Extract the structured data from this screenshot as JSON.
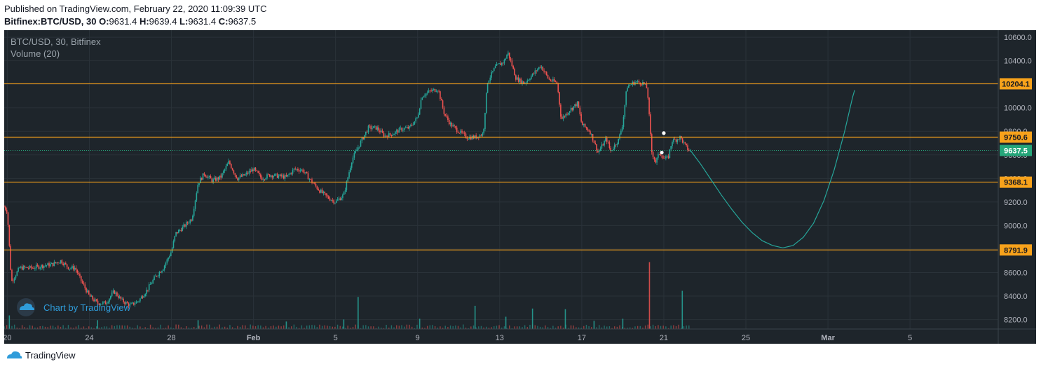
{
  "header": {
    "published": "Published on TradingView.com, February 22, 2020 11:09:39 UTC",
    "symbol": "Bitfinex:BTC/USD, 30",
    "o_label": "O:",
    "o": "9631.4",
    "h_label": "H:",
    "h": "9639.4",
    "l_label": "L:",
    "l": "9631.4",
    "c_label": "C:",
    "c": "9637.5"
  },
  "legend": {
    "series": "BTC/USD, 30, Bitfinex",
    "volume": "Volume (20)"
  },
  "watermark": "Chart by TradingView",
  "footer": {
    "brand": "TradingView"
  },
  "colors": {
    "background": "#1e252b",
    "grid": "#2a3239",
    "up": "#26a69a",
    "down": "#ef5350",
    "level_line": "#f7a21b",
    "projection": "#26a69a",
    "last_price": "#26a67a"
  },
  "chart_data": {
    "type": "candlestick",
    "title": "BTC/USD, 30, Bitfinex",
    "ylim": [
      8120,
      10660
    ],
    "y_ticks": [
      8200,
      8400,
      8600,
      8800,
      9000,
      9200,
      9400,
      9600,
      9800,
      10000,
      10200,
      10400,
      10600
    ],
    "y_tick_labels": [
      "8200.0",
      "8400.0",
      "8600.0",
      "8800.0",
      "9000.0",
      "9200.0",
      "9400.0",
      "9600.0",
      "9800.0",
      "10000.0",
      "10200.0",
      "10400.0",
      "10600.0"
    ],
    "x_ticks": [
      {
        "day": 20,
        "label": "20"
      },
      {
        "day": 24,
        "label": "24"
      },
      {
        "day": 28,
        "label": "28"
      },
      {
        "day": 32,
        "label": "Feb"
      },
      {
        "day": 36,
        "label": "5"
      },
      {
        "day": 40,
        "label": "9"
      },
      {
        "day": 44,
        "label": "13"
      },
      {
        "day": 48,
        "label": "17"
      },
      {
        "day": 52,
        "label": "21"
      },
      {
        "day": 56,
        "label": "25"
      },
      {
        "day": 60,
        "label": "Mar"
      },
      {
        "day": 64,
        "label": "5"
      }
    ],
    "xlim_days": [
      19.85,
      68.3
    ],
    "levels": [
      {
        "value": 10204.1,
        "label": "10204.1"
      },
      {
        "value": 9750.6,
        "label": "9750.6"
      },
      {
        "value": 9368.1,
        "label": "9368.1"
      },
      {
        "value": 8791.9,
        "label": "8791.9"
      }
    ],
    "last_price": {
      "value": 9637.5,
      "label": "9637.5"
    },
    "price_path": [
      [
        19.85,
        9160
      ],
      [
        20.0,
        9120
      ],
      [
        20.2,
        8520
      ],
      [
        20.6,
        8640
      ],
      [
        21.2,
        8640
      ],
      [
        21.8,
        8660
      ],
      [
        22.2,
        8670
      ],
      [
        22.6,
        8700
      ],
      [
        23.0,
        8640
      ],
      [
        23.3,
        8640
      ],
      [
        23.6,
        8530
      ],
      [
        24.0,
        8400
      ],
      [
        24.4,
        8340
      ],
      [
        24.8,
        8340
      ],
      [
        25.2,
        8440
      ],
      [
        25.6,
        8360
      ],
      [
        26.0,
        8320
      ],
      [
        26.4,
        8360
      ],
      [
        26.8,
        8450
      ],
      [
        27.2,
        8560
      ],
      [
        27.6,
        8640
      ],
      [
        28.0,
        8780
      ],
      [
        28.2,
        8930
      ],
      [
        28.6,
        8990
      ],
      [
        29.0,
        9060
      ],
      [
        29.3,
        9360
      ],
      [
        29.6,
        9440
      ],
      [
        30.0,
        9380
      ],
      [
        30.4,
        9410
      ],
      [
        30.8,
        9540
      ],
      [
        31.2,
        9400
      ],
      [
        31.6,
        9430
      ],
      [
        32.0,
        9480
      ],
      [
        32.4,
        9400
      ],
      [
        32.8,
        9430
      ],
      [
        33.2,
        9420
      ],
      [
        33.6,
        9410
      ],
      [
        34.0,
        9480
      ],
      [
        34.4,
        9470
      ],
      [
        34.8,
        9380
      ],
      [
        35.2,
        9300
      ],
      [
        35.6,
        9240
      ],
      [
        36.0,
        9200
      ],
      [
        36.4,
        9260
      ],
      [
        36.8,
        9560
      ],
      [
        37.2,
        9700
      ],
      [
        37.6,
        9830
      ],
      [
        38.0,
        9830
      ],
      [
        38.4,
        9760
      ],
      [
        38.8,
        9780
      ],
      [
        39.2,
        9820
      ],
      [
        39.6,
        9830
      ],
      [
        40.0,
        9920
      ],
      [
        40.2,
        10100
      ],
      [
        40.6,
        10140
      ],
      [
        41.0,
        10160
      ],
      [
        41.3,
        9950
      ],
      [
        41.6,
        9860
      ],
      [
        42.0,
        9800
      ],
      [
        42.4,
        9750
      ],
      [
        42.8,
        9750
      ],
      [
        43.2,
        9780
      ],
      [
        43.4,
        10220
      ],
      [
        43.8,
        10350
      ],
      [
        44.2,
        10390
      ],
      [
        44.4,
        10470
      ],
      [
        44.8,
        10250
      ],
      [
        45.2,
        10210
      ],
      [
        45.6,
        10280
      ],
      [
        46.0,
        10360
      ],
      [
        46.4,
        10240
      ],
      [
        46.8,
        10210
      ],
      [
        47.0,
        9900
      ],
      [
        47.4,
        9980
      ],
      [
        47.8,
        10040
      ],
      [
        48.0,
        9860
      ],
      [
        48.4,
        9800
      ],
      [
        48.8,
        9620
      ],
      [
        49.2,
        9740
      ],
      [
        49.4,
        9630
      ],
      [
        49.8,
        9730
      ],
      [
        50.0,
        9870
      ],
      [
        50.2,
        10180
      ],
      [
        50.6,
        10220
      ],
      [
        51.0,
        10210
      ],
      [
        51.2,
        10160
      ],
      [
        51.4,
        9630
      ],
      [
        51.6,
        9540
      ],
      [
        51.8,
        9620
      ],
      [
        52.0,
        9570
      ],
      [
        52.2,
        9570
      ],
      [
        52.4,
        9720
      ],
      [
        52.6,
        9730
      ],
      [
        52.8,
        9750
      ],
      [
        53.0,
        9690
      ],
      [
        53.2,
        9640
      ],
      [
        53.3,
        9637.5
      ]
    ],
    "projection_path": [
      [
        53.3,
        9637.5
      ],
      [
        53.8,
        9520
      ],
      [
        54.3,
        9390
      ],
      [
        54.8,
        9260
      ],
      [
        55.3,
        9140
      ],
      [
        55.8,
        9030
      ],
      [
        56.3,
        8940
      ],
      [
        56.8,
        8870
      ],
      [
        57.3,
        8830
      ],
      [
        57.8,
        8810
      ],
      [
        58.3,
        8830
      ],
      [
        58.8,
        8900
      ],
      [
        59.3,
        9020
      ],
      [
        59.8,
        9210
      ],
      [
        60.3,
        9470
      ],
      [
        60.8,
        9790
      ],
      [
        61.2,
        10090
      ],
      [
        61.3,
        10150
      ]
    ],
    "markers": [
      {
        "day": 52.0,
        "value": 9785
      },
      {
        "day": 51.9,
        "value": 9620
      }
    ],
    "volume_ylim": [
      0,
      1000
    ],
    "volume_spikes": [
      {
        "day": 20.1,
        "value": 200
      },
      {
        "day": 37.1,
        "value": 470
      },
      {
        "day": 42.8,
        "value": 340
      },
      {
        "day": 45.6,
        "value": 300
      },
      {
        "day": 47.2,
        "value": 290
      },
      {
        "day": 51.3,
        "value": 980
      },
      {
        "day": 52.9,
        "value": 560
      },
      {
        "day": 48.6,
        "value": 120
      },
      {
        "day": 24.4,
        "value": 130
      },
      {
        "day": 29.3,
        "value": 130
      },
      {
        "day": 33.6,
        "value": 110
      },
      {
        "day": 36.4,
        "value": 140
      },
      {
        "day": 40.1,
        "value": 150
      },
      {
        "day": 44.3,
        "value": 180
      },
      {
        "day": 50.0,
        "value": 150
      }
    ]
  }
}
